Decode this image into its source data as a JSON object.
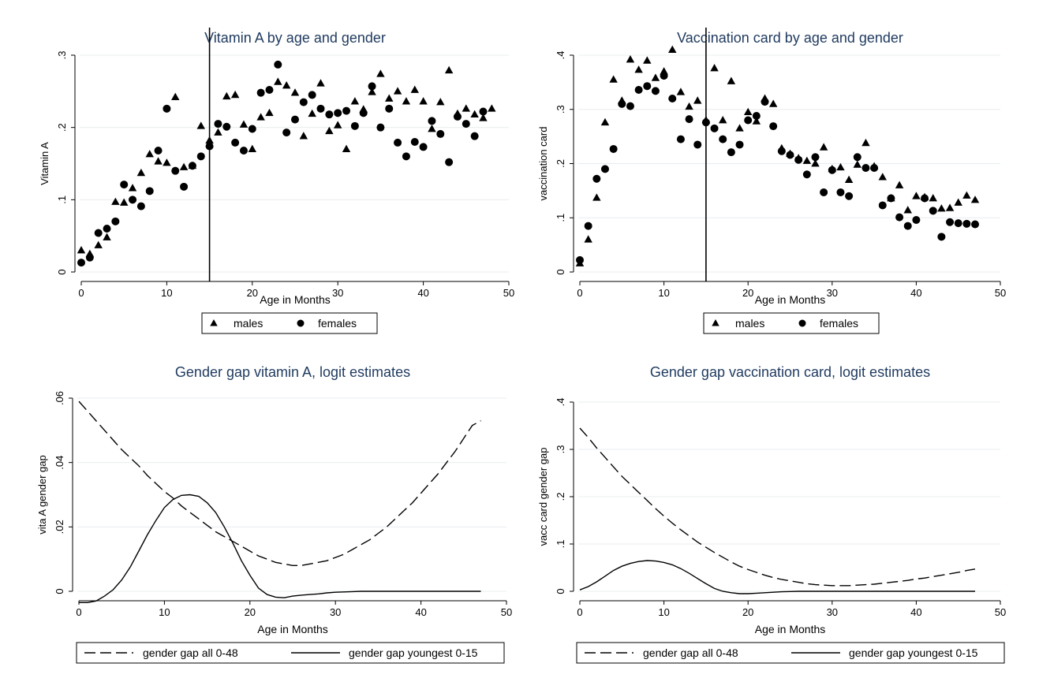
{
  "chart_data": [
    {
      "type": "scatter",
      "title": "Vitamin A by age and gender",
      "xlabel": "Age in Months",
      "ylabel": "Vitamin A",
      "xlim": [
        0,
        50
      ],
      "ylim": [
        0,
        0.3
      ],
      "xticks": [
        "0",
        "10",
        "20",
        "30",
        "40",
        "50"
      ],
      "yticks": [
        "0",
        ".1",
        ".2",
        ".3"
      ],
      "vline": 15,
      "grid": true,
      "legend_position": "bottom",
      "series": [
        {
          "name": "males",
          "marker": "triangle",
          "values": [
            0.03,
            0.025,
            0.037,
            0.048,
            0.097,
            0.096,
            0.116,
            0.137,
            0.163,
            0.153,
            0.151,
            0.242,
            0.145,
            0.147,
            0.202,
            0.182,
            0.193,
            0.243,
            0.245,
            0.204,
            0.17,
            0.214,
            0.22,
            0.263,
            0.258,
            0.248,
            0.188,
            0.219,
            0.261,
            0.195,
            0.203,
            0.17,
            0.236,
            0.225,
            0.249,
            0.274,
            0.24,
            0.25,
            0.236,
            0.252,
            0.236,
            0.198,
            0.235,
            0.279,
            0.219,
            0.226,
            0.218,
            0.213,
            0.226
          ]
        },
        {
          "name": "females",
          "marker": "circle",
          "values": [
            0.013,
            0.02,
            0.054,
            0.06,
            0.07,
            0.121,
            0.1,
            0.091,
            0.112,
            0.168,
            0.226,
            0.14,
            0.118,
            0.147,
            0.16,
            0.174,
            0.205,
            0.201,
            0.179,
            0.168,
            0.198,
            0.248,
            0.252,
            0.287,
            0.193,
            0.211,
            0.235,
            0.245,
            0.226,
            0.218,
            0.22,
            0.223,
            0.202,
            0.22,
            0.257,
            0.2,
            0.226,
            0.179,
            0.16,
            0.18,
            0.173,
            0.209,
            0.191,
            0.152,
            0.215,
            0.205,
            0.188,
            0.222
          ]
        }
      ]
    },
    {
      "type": "scatter",
      "title": "Vaccination card by age and gender",
      "xlabel": "Age in Months",
      "ylabel": "vaccination card",
      "xlim": [
        0,
        50
      ],
      "ylim": [
        0,
        0.4
      ],
      "xticks": [
        "0",
        "10",
        "20",
        "30",
        "40",
        "50"
      ],
      "yticks": [
        "0",
        ".1",
        ".2",
        ".3",
        ".4"
      ],
      "vline": 15,
      "grid": true,
      "legend_position": "bottom",
      "series": [
        {
          "name": "males",
          "marker": "triangle",
          "values": [
            0.016,
            0.06,
            0.137,
            0.276,
            0.355,
            0.316,
            0.392,
            0.373,
            0.39,
            0.358,
            0.37,
            0.41,
            0.332,
            0.305,
            0.316,
            0.28,
            0.376,
            0.28,
            0.352,
            0.265,
            0.295,
            0.278,
            0.32,
            0.31,
            0.228,
            0.218,
            0.21,
            0.205,
            0.2,
            0.23,
            0.19,
            0.193,
            0.17,
            0.198,
            0.238,
            0.195,
            0.175,
            0.136,
            0.16,
            0.114,
            0.14,
            0.138,
            0.136,
            0.117,
            0.118,
            0.128,
            0.141,
            0.133
          ]
        },
        {
          "name": "females",
          "marker": "circle",
          "values": [
            0.022,
            0.085,
            0.172,
            0.19,
            0.227,
            0.31,
            0.306,
            0.336,
            0.343,
            0.334,
            0.362,
            0.32,
            0.245,
            0.282,
            0.235,
            0.276,
            0.265,
            0.245,
            0.221,
            0.235,
            0.28,
            0.288,
            0.314,
            0.269,
            0.223,
            0.216,
            0.207,
            0.18,
            0.212,
            0.147,
            0.188,
            0.147,
            0.14,
            0.212,
            0.192,
            0.192,
            0.123,
            0.136,
            0.101,
            0.085,
            0.096,
            0.136,
            0.113,
            0.065,
            0.092,
            0.09,
            0.089,
            0.088
          ]
        }
      ]
    },
    {
      "type": "line",
      "title": "Gender gap vitamin A, logit estimates",
      "xlabel": "Age in Months",
      "ylabel": "vita A gender gap",
      "xlim": [
        0,
        50
      ],
      "ylim": [
        0,
        0.06
      ],
      "xticks": [
        "0",
        "10",
        "20",
        "30",
        "40",
        "50"
      ],
      "yticks": [
        "0",
        ".02",
        ".04",
        ".06"
      ],
      "grid": true,
      "legend_position": "bottom",
      "x": [
        0,
        1,
        2,
        3,
        4,
        5,
        6,
        7,
        8,
        9,
        10,
        11,
        12,
        13,
        14,
        15,
        16,
        17,
        18,
        19,
        20,
        21,
        22,
        23,
        24,
        25,
        26,
        27,
        28,
        29,
        30,
        31,
        32,
        33,
        34,
        35,
        36,
        37,
        38,
        39,
        40,
        41,
        42,
        43,
        44,
        45,
        46,
        47
      ],
      "series": [
        {
          "name": "gender gap all 0-48",
          "style": "dashed",
          "values": [
            0.059,
            0.056,
            0.053,
            0.05,
            0.047,
            0.044,
            0.0415,
            0.039,
            0.036,
            0.0335,
            0.031,
            0.029,
            0.0265,
            0.0245,
            0.0225,
            0.0205,
            0.0185,
            0.017,
            0.0155,
            0.014,
            0.0125,
            0.011,
            0.01,
            0.009,
            0.0085,
            0.008,
            0.008,
            0.0085,
            0.009,
            0.0095,
            0.0105,
            0.0115,
            0.013,
            0.0145,
            0.016,
            0.018,
            0.02,
            0.0225,
            0.025,
            0.0275,
            0.0305,
            0.0335,
            0.0365,
            0.04,
            0.0435,
            0.0475,
            0.0515,
            0.053
          ]
        },
        {
          "name": "gender gap youngest 0-15",
          "style": "solid",
          "values": [
            -0.0035,
            -0.0035,
            -0.003,
            -0.0015,
            0.0005,
            0.0035,
            0.0075,
            0.0125,
            0.0175,
            0.022,
            0.026,
            0.0285,
            0.0298,
            0.03,
            0.0295,
            0.0275,
            0.0245,
            0.02,
            0.015,
            0.0095,
            0.005,
            0.001,
            -0.001,
            -0.0018,
            -0.002,
            -0.0015,
            -0.0012,
            -0.001,
            -0.0008,
            -0.0005,
            -0.0003,
            -0.0002,
            -0.0001,
            0,
            0,
            0,
            0,
            0,
            0,
            0,
            0,
            0,
            0,
            0,
            0,
            0,
            0,
            0
          ]
        }
      ]
    },
    {
      "type": "line",
      "title": "Gender gap vaccination card, logit estimates",
      "xlabel": "Age in Months",
      "ylabel": "vacc card gender gap",
      "xlim": [
        0,
        50
      ],
      "ylim": [
        0,
        0.4
      ],
      "xticks": [
        "0",
        "10",
        "20",
        "30",
        "40",
        "50"
      ],
      "yticks": [
        "0",
        ".1",
        ".2",
        ".3",
        ".4"
      ],
      "grid": true,
      "legend_position": "bottom",
      "x": [
        0,
        1,
        2,
        3,
        4,
        5,
        6,
        7,
        8,
        9,
        10,
        11,
        12,
        13,
        14,
        15,
        16,
        17,
        18,
        19,
        20,
        21,
        22,
        23,
        24,
        25,
        26,
        27,
        28,
        29,
        30,
        31,
        32,
        33,
        34,
        35,
        36,
        37,
        38,
        39,
        40,
        41,
        42,
        43,
        44,
        45,
        46,
        47
      ],
      "series": [
        {
          "name": "gender gap all 0-48",
          "style": "dashed",
          "values": [
            0.345,
            0.325,
            0.303,
            0.283,
            0.263,
            0.243,
            0.226,
            0.209,
            0.192,
            0.175,
            0.159,
            0.144,
            0.13,
            0.117,
            0.104,
            0.093,
            0.082,
            0.072,
            0.062,
            0.053,
            0.046,
            0.04,
            0.034,
            0.029,
            0.025,
            0.022,
            0.019,
            0.016,
            0.014,
            0.013,
            0.012,
            0.012,
            0.012,
            0.013,
            0.014,
            0.015,
            0.017,
            0.019,
            0.021,
            0.023,
            0.026,
            0.028,
            0.031,
            0.034,
            0.037,
            0.04,
            0.044,
            0.047
          ]
        },
        {
          "name": "gender gap youngest 0-15",
          "style": "solid",
          "values": [
            0.003,
            0.01,
            0.02,
            0.032,
            0.044,
            0.053,
            0.059,
            0.063,
            0.065,
            0.064,
            0.061,
            0.056,
            0.048,
            0.038,
            0.027,
            0.016,
            0.006,
            0,
            -0.003,
            -0.005,
            -0.005,
            -0.004,
            -0.003,
            -0.002,
            -0.001,
            -0.0005,
            0,
            0,
            0,
            0,
            0,
            0,
            0,
            0,
            0,
            0,
            0,
            0,
            0,
            0,
            0,
            0,
            0,
            0,
            0,
            0,
            0,
            0
          ]
        }
      ]
    }
  ]
}
